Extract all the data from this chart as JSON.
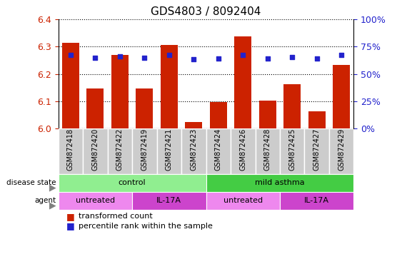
{
  "title": "GDS4803 / 8092404",
  "samples": [
    "GSM872418",
    "GSM872420",
    "GSM872422",
    "GSM872419",
    "GSM872421",
    "GSM872423",
    "GSM872424",
    "GSM872426",
    "GSM872428",
    "GSM872425",
    "GSM872427",
    "GSM872429"
  ],
  "red_values": [
    6.315,
    6.148,
    6.27,
    6.148,
    6.307,
    6.025,
    6.097,
    6.338,
    6.103,
    6.163,
    6.063,
    6.234
  ],
  "blue_values": [
    6.27,
    6.258,
    6.263,
    6.258,
    6.27,
    6.255,
    6.256,
    6.27,
    6.256,
    6.262,
    6.256,
    6.27
  ],
  "ylim": [
    6.0,
    6.4
  ],
  "yticks": [
    6.0,
    6.1,
    6.2,
    6.3,
    6.4
  ],
  "y2ticks": [
    0,
    25,
    50,
    75,
    100
  ],
  "y2labels": [
    "0%",
    "25%",
    "50%",
    "75%",
    "100%"
  ],
  "bar_color": "#CC2200",
  "dot_color": "#2222CC",
  "disease_state_control_color": "#90EE90",
  "disease_state_asthma_color": "#44CC44",
  "agent_untreated_color": "#EE88EE",
  "agent_IL17A_color": "#CC44CC",
  "tick_bg_color": "#CCCCCC",
  "disease_groups": [
    {
      "label": "control",
      "start": 0,
      "end": 6
    },
    {
      "label": "mild asthma",
      "start": 6,
      "end": 12
    }
  ],
  "agent_groups": [
    {
      "label": "untreated",
      "start": 0,
      "end": 3
    },
    {
      "label": "IL-17A",
      "start": 3,
      "end": 6
    },
    {
      "label": "untreated",
      "start": 6,
      "end": 9
    },
    {
      "label": "IL-17A",
      "start": 9,
      "end": 12
    }
  ],
  "legend_items": [
    {
      "label": "transformed count",
      "color": "#CC2200"
    },
    {
      "label": "percentile rank within the sample",
      "color": "#2222CC"
    }
  ]
}
